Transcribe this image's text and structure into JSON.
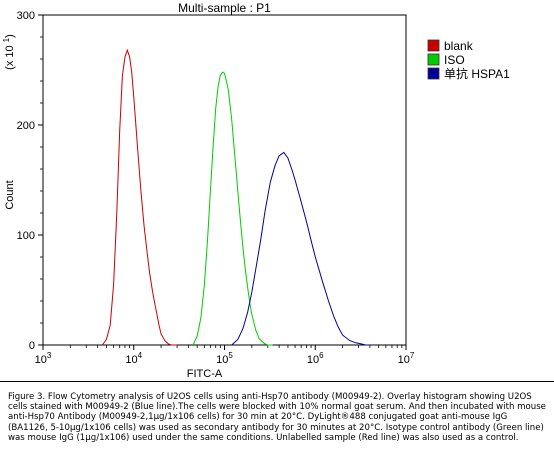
{
  "chart_data": {
    "type": "line",
    "title": "Multi-sample : P1",
    "xlabel": "FITC-A",
    "ylabel": "Count",
    "y_multiplier": "(x 10",
    "y_multiplier_exp": "1",
    "y_multiplier_close": ")",
    "xscale": "log",
    "xlim": [
      1000,
      10000000
    ],
    "ylim": [
      0,
      300
    ],
    "x_ticks": [
      {
        "value": 1000,
        "base": "10",
        "exp": "3"
      },
      {
        "value": 10000,
        "base": "10",
        "exp": "4"
      },
      {
        "value": 100000,
        "base": "10",
        "exp": "5"
      },
      {
        "value": 1000000,
        "base": "10",
        "exp": "6"
      },
      {
        "value": 10000000,
        "base": "10",
        "exp": "7"
      }
    ],
    "y_ticks": [
      {
        "value": 0,
        "label": "0"
      },
      {
        "value": 100,
        "label": "100"
      },
      {
        "value": 200,
        "label": "200"
      },
      {
        "value": 300,
        "label": "300"
      }
    ],
    "legend_position": "top-right",
    "series": [
      {
        "name": "blank",
        "color": "#cc0000",
        "x": [
          4500,
          5000,
          5500,
          6000,
          6500,
          7000,
          7500,
          8000,
          8500,
          9000,
          9500,
          10000,
          11000,
          12000,
          13000,
          14000,
          15000,
          16000,
          17000,
          18000,
          19000,
          20000,
          22000,
          24000,
          26000,
          28000,
          30000
        ],
        "y": [
          0,
          5,
          18,
          55,
          120,
          195,
          245,
          262,
          268,
          262,
          248,
          225,
          180,
          140,
          108,
          85,
          65,
          50,
          38,
          28,
          18,
          10,
          4,
          1,
          0,
          0,
          0
        ]
      },
      {
        "name": "ISO",
        "color": "#00cc00",
        "x": [
          45000,
          50000,
          55000,
          60000,
          65000,
          70000,
          75000,
          80000,
          85000,
          90000,
          95000,
          100000,
          110000,
          120000,
          130000,
          140000,
          150000,
          160000,
          170000,
          180000,
          190000,
          200000,
          220000,
          240000,
          260000,
          280000,
          300000,
          320000,
          340000
        ],
        "y": [
          0,
          8,
          25,
          55,
          95,
          140,
          182,
          215,
          235,
          245,
          248,
          247,
          232,
          205,
          172,
          140,
          112,
          88,
          68,
          52,
          38,
          28,
          14,
          6,
          3,
          1,
          0,
          0,
          0
        ]
      },
      {
        "name": "单抗 HSPA1",
        "color": "#000099",
        "x": [
          120000,
          140000,
          160000,
          180000,
          200000,
          220000,
          250000,
          280000,
          320000,
          360000,
          400000,
          450000,
          500000,
          550000,
          600000,
          700000,
          800000,
          900000,
          1000000,
          1200000,
          1400000,
          1600000,
          1800000,
          2000000,
          2400000,
          2800000,
          3200000,
          3600000,
          4000000
        ],
        "y": [
          0,
          5,
          15,
          30,
          48,
          68,
          95,
          122,
          148,
          163,
          172,
          175,
          170,
          160,
          150,
          130,
          112,
          95,
          80,
          58,
          40,
          26,
          16,
          9,
          4,
          2,
          1,
          0,
          0
        ]
      }
    ]
  },
  "caption": "Figure 3. Flow Cytometry analysis of U2OS cells using anti-Hsp70 antibody (M00949-2).  Overlay histogram showing U2OS cells stained with M00949-2 (Blue line).The cells were blocked with 10% normal goat serum. And then incubated with mouse anti-Hsp70 Antibody (M00949-2,1μg/1x106 cells) for 30 min at 20°C. DyLight®488 conjugated goat anti-mouse IgG (BA1126, 5-10μg/1x106 cells) was used as secondary antibody for 30 minutes at 20°C. Isotype control antibody (Green line) was mouse IgG (1μg/1x106) used under the same conditions. Unlabelled sample (Red line) was also used as a control."
}
